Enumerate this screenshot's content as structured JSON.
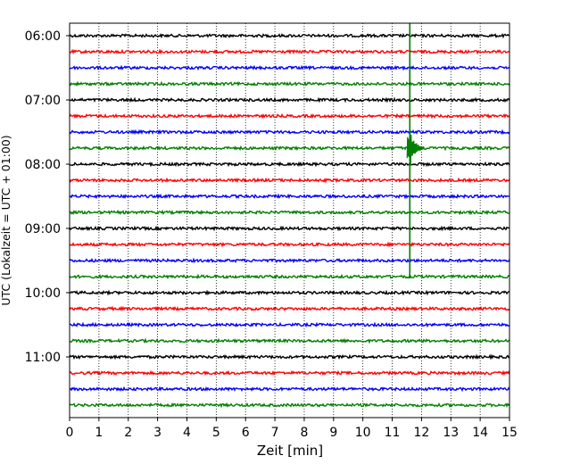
{
  "chart_data": {
    "type": "line",
    "title": "",
    "xlabel": "Zeit  [min]",
    "ylabel": "UTC (Lokalzeit = UTC + 01:00)",
    "xlim": [
      0,
      15
    ],
    "x_ticks": [
      0,
      1,
      2,
      3,
      4,
      5,
      6,
      7,
      8,
      9,
      10,
      11,
      12,
      13,
      14,
      15
    ],
    "y_tick_labels": [
      "06:00",
      "07:00",
      "08:00",
      "09:00",
      "10:00",
      "11:00"
    ],
    "grid": "vertical dotted",
    "trace_interval_minutes": 15,
    "trace_start_utc": "06:00",
    "trace_count": 24,
    "trace_colors": [
      "#000000",
      "#ff0000",
      "#0000ff",
      "#008000"
    ],
    "event": {
      "time_min": 11.6,
      "color": "#008000",
      "peak_trace_start_utc": "07:45",
      "visible_from_utc": "06:00",
      "visible_to_utc": "09:45"
    }
  }
}
